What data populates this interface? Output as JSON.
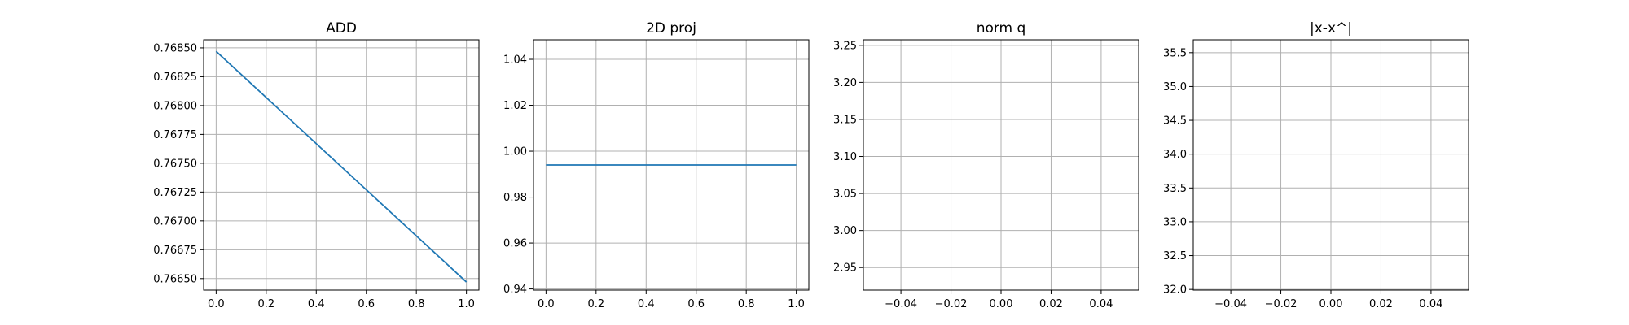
{
  "colors": {
    "series": "#1f77b4",
    "grid": "#b0b0b0",
    "frame": "#000000"
  },
  "chart_data": [
    {
      "type": "line",
      "title": "ADD",
      "grid": true,
      "xlim": [
        -0.05,
        1.05
      ],
      "ylim": [
        0.7664,
        0.76857
      ],
      "xticks": [
        0.0,
        0.2,
        0.4,
        0.6,
        0.8,
        1.0
      ],
      "xtick_labels": [
        "0.0",
        "0.2",
        "0.4",
        "0.6",
        "0.8",
        "1.0"
      ],
      "yticks": [
        0.7665,
        0.76675,
        0.767,
        0.76725,
        0.7675,
        0.76775,
        0.768,
        0.76825,
        0.7685
      ],
      "ytick_labels": [
        "0.76650",
        "0.76675",
        "0.76700",
        "0.76725",
        "0.76750",
        "0.76775",
        "0.76800",
        "0.76825",
        "0.76850"
      ],
      "series": [
        {
          "x": [
            0,
            1
          ],
          "y": [
            0.76847,
            0.76647
          ]
        }
      ]
    },
    {
      "type": "line",
      "title": "2D proj",
      "grid": true,
      "xlim": [
        -0.05,
        1.05
      ],
      "ylim": [
        0.9395,
        1.0485
      ],
      "xticks": [
        0.0,
        0.2,
        0.4,
        0.6,
        0.8,
        1.0
      ],
      "xtick_labels": [
        "0.0",
        "0.2",
        "0.4",
        "0.6",
        "0.8",
        "1.0"
      ],
      "yticks": [
        0.94,
        0.96,
        0.98,
        1.0,
        1.02,
        1.04
      ],
      "ytick_labels": [
        "0.94",
        "0.96",
        "0.98",
        "1.00",
        "1.02",
        "1.04"
      ],
      "series": [
        {
          "x": [
            0,
            1
          ],
          "y": [
            0.994,
            0.994
          ]
        }
      ]
    },
    {
      "type": "line",
      "title": "norm q",
      "grid": true,
      "xlim": [
        -0.055,
        0.055
      ],
      "ylim": [
        2.9195,
        3.2575
      ],
      "xticks": [
        -0.04,
        -0.02,
        0.0,
        0.02,
        0.04
      ],
      "xtick_labels": [
        "−0.04",
        "−0.02",
        "0.00",
        "0.02",
        "0.04"
      ],
      "yticks": [
        2.95,
        3.0,
        3.05,
        3.1,
        3.15,
        3.2,
        3.25
      ],
      "ytick_labels": [
        "2.95",
        "3.00",
        "3.05",
        "3.10",
        "3.15",
        "3.20",
        "3.25"
      ],
      "series": []
    },
    {
      "type": "line",
      "title": "|x-x^|",
      "grid": true,
      "xlim": [
        -0.055,
        0.055
      ],
      "ylim": [
        31.99,
        35.69
      ],
      "xticks": [
        -0.04,
        -0.02,
        0.0,
        0.02,
        0.04
      ],
      "xtick_labels": [
        "−0.04",
        "−0.02",
        "0.00",
        "0.02",
        "0.04"
      ],
      "yticks": [
        32.0,
        32.5,
        33.0,
        33.5,
        34.0,
        34.5,
        35.0,
        35.5
      ],
      "ytick_labels": [
        "32.0",
        "32.5",
        "33.0",
        "33.5",
        "34.0",
        "34.5",
        "35.0",
        "35.5"
      ],
      "series": []
    }
  ]
}
